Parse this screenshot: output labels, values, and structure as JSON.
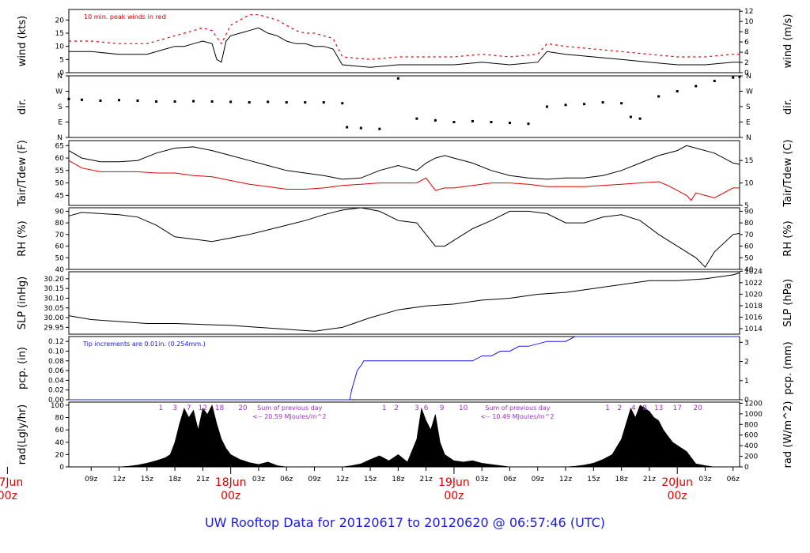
{
  "page_title": "UW Rooftop Data for 20120617  to  20120620 @ 06:57:46  (UTC)",
  "colors": {
    "black": "#000000",
    "red": "#e00000",
    "blue": "#1a1ae6",
    "purple": "#9b30c8",
    "date_red": "#e00000"
  },
  "time_axis": {
    "unit": "hours since 2012-06-17 00z",
    "range": [
      6.6,
      78.7
    ],
    "tick_labels": [
      "09z",
      "12z",
      "15z",
      "18z",
      "21z",
      "03z",
      "06z",
      "09z",
      "12z",
      "15z",
      "18z",
      "21z",
      "03z",
      "06z",
      "09z",
      "12z",
      "15z",
      "18z",
      "21z",
      "03z",
      "06z"
    ],
    "tick_hours": [
      9,
      12,
      15,
      18,
      21,
      27,
      30,
      33,
      36,
      39,
      42,
      45,
      51,
      54,
      57,
      60,
      63,
      66,
      69,
      75,
      78
    ],
    "date_labels": [
      {
        "hour": 0,
        "day": "17Jun",
        "time": "00z"
      },
      {
        "hour": 24,
        "day": "18Jun",
        "time": "00z"
      },
      {
        "hour": 48,
        "day": "19Jun",
        "time": "00z"
      },
      {
        "hour": 72,
        "day": "20Jun",
        "time": "00z"
      }
    ]
  },
  "chart_data": [
    {
      "id": "wind",
      "type": "line",
      "ylabel_left": "wind (kts)",
      "ylabel_right": "wind (m/s)",
      "ylim": [
        0,
        24
      ],
      "yticks_left": [
        0,
        5,
        10,
        15,
        20
      ],
      "yticks_right": [
        0,
        2,
        4,
        6,
        8,
        10,
        12
      ],
      "right_scale": 0.5144,
      "annotation": "10 min. peak winds in red",
      "series": [
        {
          "name": "wind speed",
          "color": "#000000",
          "x": [
            6.6,
            9,
            12,
            15,
            17,
            18,
            19,
            20,
            21,
            22,
            22.5,
            23,
            23.5,
            24,
            25,
            26,
            27,
            28,
            29,
            30,
            31,
            32,
            33,
            34,
            35,
            36,
            39,
            42,
            45,
            48,
            51,
            54,
            57,
            58,
            60,
            63,
            66,
            69,
            72,
            75,
            78,
            78.7
          ],
          "y": [
            8,
            8,
            7,
            7,
            9,
            10,
            10,
            11,
            12,
            11,
            5,
            4,
            12,
            14,
            15,
            16,
            17,
            15,
            14,
            12,
            11,
            11,
            10,
            10,
            9,
            3,
            2,
            3,
            3,
            3,
            4,
            3,
            4,
            8,
            7,
            6,
            5,
            4,
            3,
            3,
            4,
            4
          ]
        },
        {
          "name": "10 min. peak winds",
          "color": "#e00000",
          "x": [
            6.6,
            9,
            12,
            15,
            17,
            18,
            19,
            20,
            21,
            22,
            23,
            24,
            25,
            26,
            27,
            28,
            29,
            30,
            31,
            32,
            33,
            34,
            35,
            36,
            39,
            42,
            45,
            48,
            51,
            54,
            57,
            58,
            60,
            63,
            66,
            69,
            72,
            75,
            78,
            78.7
          ],
          "y": [
            12,
            12,
            11,
            11,
            13,
            14,
            15,
            16,
            17,
            16,
            11,
            18,
            20,
            22,
            22,
            21,
            20,
            18,
            16,
            15,
            15,
            14,
            13,
            6,
            5,
            6,
            6,
            6,
            7,
            6,
            7,
            11,
            10,
            9,
            8,
            7,
            6,
            6,
            7,
            7
          ]
        }
      ]
    },
    {
      "id": "dir",
      "type": "scatter",
      "ylabel_left": "dir.",
      "ylabel_right": "dir.",
      "ytick_labels": [
        "N",
        "E",
        "S",
        "W",
        "N"
      ],
      "ylim": [
        0,
        360
      ],
      "series": [
        {
          "name": "wind direction",
          "color": "#000000",
          "x": [
            6.6,
            8,
            10,
            12,
            14,
            16,
            18,
            20,
            22,
            24,
            26,
            28,
            30,
            32,
            34,
            36,
            36.5,
            38,
            40,
            42,
            44,
            46,
            48,
            50,
            52,
            54,
            56,
            58,
            60,
            62,
            64,
            66,
            67,
            68,
            70,
            72,
            74,
            76,
            78,
            78.7
          ],
          "y": [
            225,
            220,
            215,
            218,
            215,
            210,
            210,
            212,
            210,
            208,
            205,
            208,
            205,
            205,
            205,
            200,
            60,
            55,
            50,
            345,
            110,
            100,
            90,
            95,
            90,
            85,
            80,
            180,
            190,
            195,
            205,
            200,
            120,
            110,
            240,
            270,
            300,
            330,
            350,
            355
          ]
        }
      ]
    },
    {
      "id": "temp",
      "type": "line",
      "ylabel_left": "Tair/Tdew (F)",
      "ylabel_right": "Tair/Tdew (C)",
      "ylim": [
        41,
        67
      ],
      "yticks_left": [
        45,
        50,
        55,
        60,
        65
      ],
      "yticks_right": [
        5,
        10,
        15
      ],
      "series": [
        {
          "name": "Tair",
          "color": "#000000",
          "x": [
            6.6,
            8,
            10,
            12,
            14,
            16,
            18,
            20,
            22,
            24,
            26,
            28,
            30,
            32,
            34,
            36,
            38,
            40,
            42,
            44,
            45,
            46,
            47,
            48,
            50,
            52,
            54,
            56,
            58,
            60,
            62,
            64,
            66,
            68,
            70,
            72,
            73,
            74,
            76,
            78,
            78.7
          ],
          "y": [
            63,
            60,
            58.5,
            58.5,
            59,
            62,
            64,
            64.5,
            63,
            61,
            59,
            57,
            55,
            54,
            53,
            51.5,
            52,
            55,
            57,
            55,
            58,
            60,
            61,
            60,
            58,
            55,
            53,
            52,
            51.5,
            52,
            52,
            53,
            55,
            58,
            61,
            63,
            65,
            64,
            62,
            58,
            57.5
          ]
        },
        {
          "name": "Tdew",
          "color": "#e00000",
          "x": [
            6.6,
            8,
            10,
            12,
            14,
            16,
            18,
            20,
            22,
            24,
            26,
            28,
            30,
            32,
            34,
            36,
            38,
            40,
            42,
            44,
            45,
            46,
            47,
            48,
            50,
            52,
            54,
            56,
            58,
            60,
            62,
            64,
            66,
            68,
            70,
            71,
            72,
            73,
            73.5,
            74,
            76,
            78,
            78.7
          ],
          "y": [
            59,
            56,
            54.5,
            54.5,
            54.5,
            54,
            54,
            53,
            52.5,
            51,
            49.5,
            48.5,
            47.5,
            47.5,
            48,
            49,
            49.5,
            50,
            50,
            50,
            52,
            47,
            48,
            48,
            49,
            50,
            50,
            49.5,
            48.5,
            48.5,
            48.5,
            49,
            49.5,
            50,
            50.5,
            49,
            47,
            45,
            43,
            46,
            44,
            48,
            48
          ]
        }
      ]
    },
    {
      "id": "rh",
      "type": "line",
      "ylabel_left": "RH (%)",
      "ylabel_right": "RH (%)",
      "ylim": [
        40,
        93
      ],
      "yticks_left": [
        40,
        50,
        60,
        70,
        80,
        90
      ],
      "yticks_right": [
        40,
        50,
        60,
        70,
        80,
        90
      ],
      "series": [
        {
          "name": "RH",
          "color": "#000000",
          "x": [
            6.6,
            8,
            10,
            12,
            14,
            16,
            18,
            20,
            22,
            24,
            26,
            28,
            30,
            32,
            34,
            36,
            38,
            40,
            42,
            44,
            45,
            46,
            47,
            48,
            50,
            52,
            54,
            56,
            58,
            60,
            62,
            64,
            66,
            68,
            70,
            72,
            73,
            74,
            75,
            76,
            78,
            78.7
          ],
          "y": [
            86,
            89,
            88,
            87,
            85,
            78,
            68,
            66,
            64,
            67,
            70,
            74,
            78,
            82,
            87,
            91,
            93,
            90,
            82,
            80,
            70,
            60,
            60,
            65,
            75,
            82,
            90,
            90,
            88,
            80,
            80,
            85,
            87,
            82,
            70,
            60,
            55,
            50,
            42,
            55,
            70,
            71
          ]
        }
      ]
    },
    {
      "id": "slp",
      "type": "line",
      "ylabel_left": "SLP (inHg)",
      "ylabel_right": "SLP (hPa)",
      "ylim": [
        29.915,
        30.236
      ],
      "yticks_left": [
        29.95,
        30.0,
        30.05,
        30.1,
        30.15,
        30.2
      ],
      "yticks_right": [
        1014,
        1016,
        1018,
        1020,
        1022,
        1024
      ],
      "series": [
        {
          "name": "SLP",
          "color": "#000000",
          "x": [
            6.6,
            9,
            12,
            15,
            18,
            21,
            24,
            27,
            30,
            33,
            36,
            39,
            42,
            45,
            48,
            51,
            54,
            57,
            60,
            63,
            66,
            69,
            72,
            75,
            78,
            78.7
          ],
          "y": [
            30.01,
            29.99,
            29.98,
            29.97,
            29.97,
            29.965,
            29.96,
            29.95,
            29.94,
            29.93,
            29.95,
            30.0,
            30.04,
            30.06,
            30.07,
            30.09,
            30.1,
            30.12,
            30.13,
            30.15,
            30.17,
            30.19,
            30.19,
            30.2,
            30.22,
            30.23
          ]
        }
      ]
    },
    {
      "id": "pcp",
      "type": "line",
      "ylabel_left": "pcp. (in)",
      "ylabel_right": "pcp. (mm)",
      "ylim": [
        0,
        0.13
      ],
      "yticks_left": [
        0,
        0.02,
        0.04,
        0.06,
        0.08,
        0.1,
        0.12
      ],
      "yticks_right": [
        0,
        1,
        2,
        3
      ],
      "annotation": "Tip increments are 0.01in. (0.254mm.)",
      "series": [
        {
          "name": "precipitation",
          "color": "#1a1ae6",
          "x": [
            6.6,
            36.8,
            37,
            37.3,
            37.6,
            38,
            38.3,
            38.6,
            39,
            40,
            45,
            48,
            50,
            51,
            52,
            53,
            54,
            55,
            56,
            58,
            60,
            61,
            62,
            78.7
          ],
          "y": [
            0,
            0,
            0.02,
            0.04,
            0.06,
            0.07,
            0.08,
            0.08,
            0.08,
            0.08,
            0.08,
            0.08,
            0.08,
            0.09,
            0.09,
            0.1,
            0.1,
            0.11,
            0.11,
            0.12,
            0.12,
            0.13,
            0.13,
            0.13
          ]
        }
      ]
    },
    {
      "id": "rad",
      "type": "area",
      "ylabel_left": "rad(Lgly/hr)",
      "ylabel_right": "rad (W/m^2)",
      "ylim": [
        0,
        105
      ],
      "yticks_left": [
        0,
        20,
        40,
        60,
        80,
        100
      ],
      "yticks_right": [
        0,
        200,
        400,
        600,
        800,
        1000,
        1200
      ],
      "hour_labels": [
        {
          "hour": 16.5,
          "label": "1"
        },
        {
          "hour": 18.0,
          "label": "3"
        },
        {
          "hour": 19.5,
          "label": "7"
        },
        {
          "hour": 21.0,
          "label": "12"
        },
        {
          "hour": 22.8,
          "label": "18"
        },
        {
          "hour": 25.3,
          "label": "20"
        },
        {
          "hour": 40.5,
          "label": "1"
        },
        {
          "hour": 41.8,
          "label": "2"
        },
        {
          "hour": 44.0,
          "label": "3"
        },
        {
          "hour": 45.0,
          "label": "6"
        },
        {
          "hour": 46.7,
          "label": "9"
        },
        {
          "hour": 49.0,
          "label": "10"
        },
        {
          "hour": 64.5,
          "label": "1"
        },
        {
          "hour": 65.8,
          "label": "2"
        },
        {
          "hour": 67.3,
          "label": "4"
        },
        {
          "hour": 68.5,
          "label": "8"
        },
        {
          "hour": 70.0,
          "label": "13"
        },
        {
          "hour": 72.0,
          "label": "17"
        },
        {
          "hour": 74.2,
          "label": "20"
        }
      ],
      "daily_sums": [
        {
          "hour": 26.0,
          "line1": "Sum of previous day",
          "line2": "<-- 20.59 MJoules/m^2"
        },
        {
          "hour": 50.5,
          "line1": "Sum of previous day",
          "line2": "<-- 10.49 MJoules/m^2"
        }
      ],
      "series": [
        {
          "name": "solar radiation",
          "color": "#000000",
          "x": [
            12,
            13,
            14,
            15,
            16,
            17,
            17.5,
            18,
            18.5,
            19,
            19.5,
            20,
            20.5,
            21,
            21.5,
            22,
            22.5,
            23,
            23.5,
            24,
            25,
            26,
            27,
            28,
            29,
            30,
            36,
            37,
            38,
            39,
            40,
            41,
            42,
            43,
            44,
            44.5,
            45,
            45.5,
            46,
            46.5,
            47,
            48,
            49,
            50,
            51,
            52,
            53,
            54,
            60,
            61,
            62,
            63,
            64,
            65,
            66,
            66.5,
            67,
            67.5,
            68,
            68.5,
            69,
            69.5,
            70,
            70.5,
            71,
            71.5,
            72,
            73,
            74,
            75,
            76
          ],
          "y": [
            0,
            1,
            3,
            6,
            10,
            15,
            20,
            40,
            70,
            95,
            80,
            92,
            60,
            95,
            85,
            100,
            70,
            45,
            30,
            20,
            12,
            7,
            4,
            8,
            2,
            0,
            0,
            2,
            5,
            12,
            18,
            10,
            20,
            8,
            45,
            95,
            75,
            60,
            85,
            40,
            20,
            10,
            8,
            10,
            6,
            4,
            2,
            0,
            0,
            1,
            3,
            6,
            12,
            20,
            45,
            70,
            95,
            80,
            100,
            95,
            90,
            80,
            75,
            60,
            50,
            40,
            35,
            25,
            5,
            2,
            0
          ]
        }
      ]
    }
  ]
}
